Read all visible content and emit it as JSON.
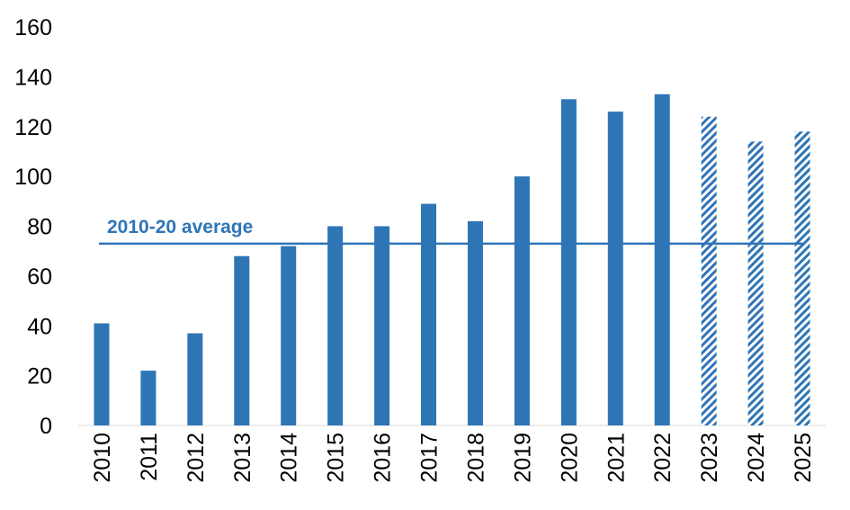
{
  "chart_data": {
    "type": "bar",
    "title": "",
    "xlabel": "",
    "ylabel": "",
    "ylim": [
      0,
      160
    ],
    "yticks": [
      0,
      20,
      40,
      60,
      80,
      100,
      120,
      140,
      160
    ],
    "grid": false,
    "categories": [
      "2010",
      "2011",
      "2012",
      "2013",
      "2014",
      "2015",
      "2016",
      "2017",
      "2018",
      "2019",
      "2020",
      "2021",
      "2022",
      "2023",
      "2024",
      "2025"
    ],
    "values": [
      41,
      22,
      37,
      68,
      72,
      80,
      80,
      89,
      82,
      100,
      131,
      126,
      133,
      124,
      114,
      118
    ],
    "forecast": [
      false,
      false,
      false,
      false,
      false,
      false,
      false,
      false,
      false,
      false,
      false,
      false,
      false,
      true,
      true,
      true
    ],
    "bar_color": "#2e75b6",
    "average_line": {
      "label": "2010-20 average",
      "value": 73,
      "color": "#2e75b6"
    }
  }
}
